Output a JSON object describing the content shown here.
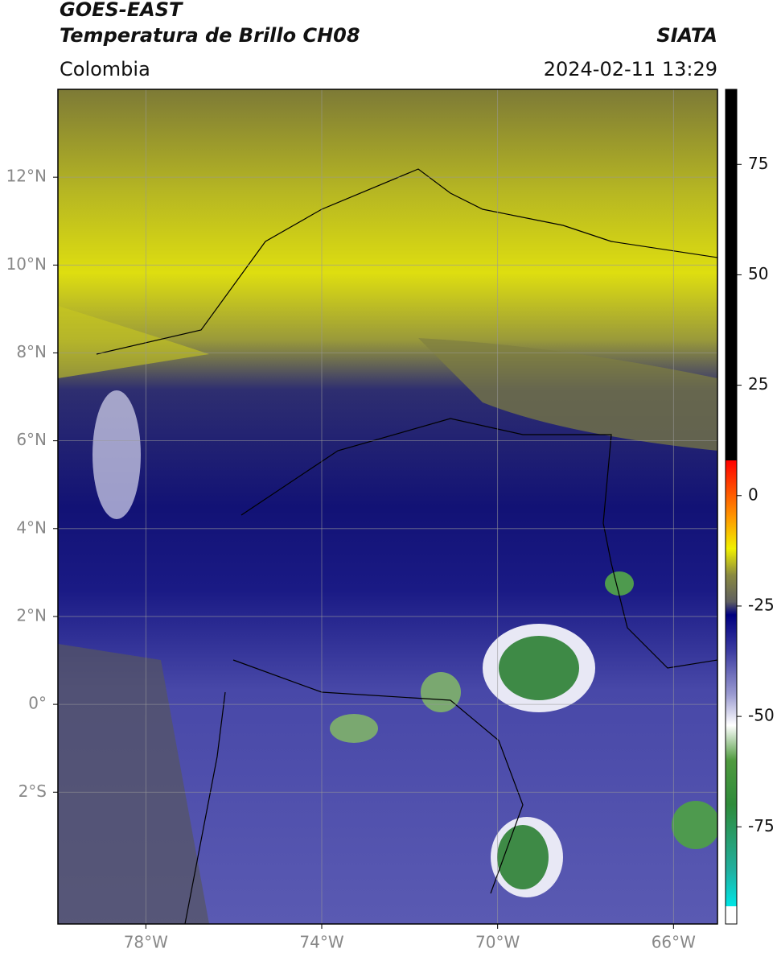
{
  "header": {
    "source": "GOES-EAST",
    "product": "Temperatura de Brillo CH08",
    "institution": "SIATA",
    "region": "Colombia",
    "datetime": "2024-02-11 13:29"
  },
  "map": {
    "xlim": [
      -80,
      -65
    ],
    "ylim": [
      -5,
      14
    ],
    "grid": true,
    "xticks": [
      {
        "value": -78,
        "label": "78°W"
      },
      {
        "value": -74,
        "label": "74°W"
      },
      {
        "value": -70,
        "label": "70°W"
      },
      {
        "value": -66,
        "label": "66°W"
      }
    ],
    "yticks": [
      {
        "value": 12,
        "label": "12°N"
      },
      {
        "value": 10,
        "label": "10°N"
      },
      {
        "value": 8,
        "label": "8°N"
      },
      {
        "value": 6,
        "label": "6°N"
      },
      {
        "value": 4,
        "label": "4°N"
      },
      {
        "value": 2,
        "label": "2°N"
      },
      {
        "value": 0,
        "label": "0°"
      },
      {
        "value": -2,
        "label": "2°S"
      }
    ]
  },
  "colorbar": {
    "lim": [
      -97,
      92
    ],
    "ticks": [
      75,
      50,
      25,
      0,
      -25,
      -50,
      -75
    ],
    "stops": [
      {
        "value": -97,
        "color": "#ffffff"
      },
      {
        "value": -93,
        "color": "#ffffff"
      },
      {
        "value": -93,
        "color": "#00e5e5"
      },
      {
        "value": -85,
        "color": "#20b0a0"
      },
      {
        "value": -70,
        "color": "#2e8b3a"
      },
      {
        "value": -60,
        "color": "#4f9a3e"
      },
      {
        "value": -52,
        "color": "#ffffff"
      },
      {
        "value": -45,
        "color": "#9a9ad0"
      },
      {
        "value": -35,
        "color": "#3a3aa0"
      },
      {
        "value": -27,
        "color": "#000080"
      },
      {
        "value": -24,
        "color": "#606060"
      },
      {
        "value": -18,
        "color": "#8a8a40"
      },
      {
        "value": -12,
        "color": "#f0f000"
      },
      {
        "value": -5,
        "color": "#ff9900"
      },
      {
        "value": 8,
        "color": "#ff0000"
      },
      {
        "value": 8,
        "color": "#000000"
      },
      {
        "value": 92,
        "color": "#000000"
      }
    ]
  }
}
